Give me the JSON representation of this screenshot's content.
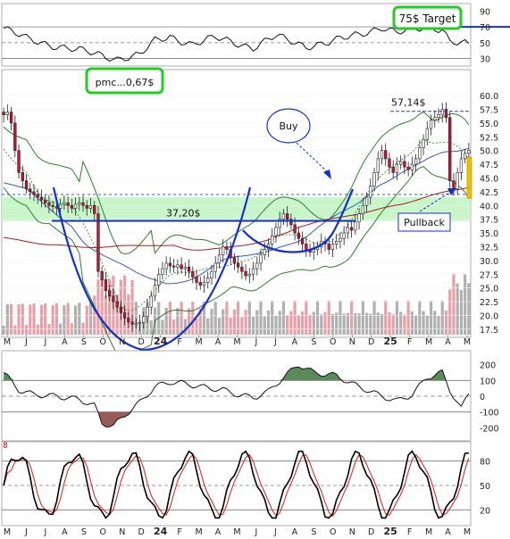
{
  "colors": {
    "up": "#ffffff",
    "down": "#cc1133",
    "candle_stroke": "#222222",
    "green_zone": "#bff5bf",
    "blue_line": "#1530c8",
    "bb_band": "#2f7d2f",
    "ma_long": "#a02020",
    "ma_short": "#3b5bb3",
    "label_box_green": "#22cc22",
    "vol_up": "#b0b0b0",
    "vol_down": "#e8a0a8",
    "rsi_line": "#111111",
    "stoch_k": "#000000",
    "stoch_d": "#e01818"
  },
  "annotations": {
    "target_label": "75$ Target",
    "pmc_label": "pmc...0,67$",
    "buy_label": "Buy",
    "pullback_label": "Pullback",
    "level_3720": "37,20$",
    "level_5714": "57,14$",
    "stoch_top_label": "8"
  },
  "chart_data": [
    {
      "type": "line",
      "panel": "rsi_top",
      "yticks": [
        30,
        50,
        70,
        90
      ],
      "reference_lines": [
        30,
        50,
        70
      ],
      "target_line": 70,
      "ylim": [
        25,
        95
      ]
    },
    {
      "type": "candlestick",
      "panel": "price",
      "xticks": [
        "M",
        "J",
        "J",
        "A",
        "S",
        "O",
        "N",
        "D",
        "24",
        "F",
        "M",
        "A",
        "M",
        "J",
        "J",
        "A",
        "S",
        "O",
        "N",
        "D",
        "25",
        "F",
        "M",
        "A",
        "M"
      ],
      "yticks": [
        17.5,
        20.0,
        22.5,
        25.0,
        27.5,
        30.0,
        32.5,
        35.0,
        37.5,
        40.0,
        42.5,
        45.0,
        47.5,
        50.0,
        52.5,
        55.0,
        57.5,
        60.0
      ],
      "ylim": [
        16.5,
        60.5
      ],
      "levels": {
        "support": 37.2,
        "resistance": 57.14,
        "dashed": 42.0
      },
      "zone": [
        37.2,
        41.5
      ],
      "close": [
        56.5,
        57.0,
        55.0,
        50.0,
        46.0,
        44.5,
        43.0,
        42.5,
        42.0,
        41.5,
        41.0,
        40.5,
        40.0,
        39.8,
        39.5,
        40.2,
        40.5,
        40.0,
        39.5,
        40.2,
        40.5,
        40.0,
        39.5,
        40.0,
        38.5,
        28.0,
        26.5,
        24.5,
        23.5,
        22.5,
        21.5,
        20.5,
        19.5,
        18.8,
        18.4,
        18.5,
        18.7,
        19.8,
        21.5,
        23.5,
        25.5,
        27.5,
        28.5,
        29.5,
        29.0,
        28.8,
        29.2,
        28.5,
        28.8,
        28.0,
        27.0,
        26.0,
        25.5,
        26.0,
        26.8,
        28.0,
        29.5,
        31.0,
        32.5,
        32.0,
        30.5,
        29.5,
        28.8,
        28.0,
        27.2,
        27.5,
        28.5,
        29.5,
        31.0,
        32.0,
        33.0,
        34.5,
        36.0,
        37.5,
        38.5,
        37.5,
        36.5,
        35.0,
        34.0,
        33.0,
        32.0,
        31.5,
        32.0,
        32.5,
        33.5,
        33.0,
        32.0,
        33.0,
        33.5,
        34.0,
        35.0,
        36.0,
        35.5,
        37.0,
        38.5,
        40.0,
        41.5,
        43.5,
        46.0,
        48.5,
        50.0,
        48.5,
        47.0,
        46.0,
        47.5,
        48.0,
        47.0,
        46.5,
        47.5,
        48.5,
        50.5,
        52.0,
        54.0,
        55.5,
        56.0,
        56.5,
        57.5,
        56.0,
        44.5,
        43.0,
        46.0,
        48.5,
        49.5,
        50.0
      ]
    },
    {
      "type": "bar",
      "panel": "volume",
      "yticks": [
        17.5,
        20.0,
        22.5
      ]
    },
    {
      "type": "area",
      "panel": "cci",
      "yticks": [
        -200,
        -100,
        0,
        100,
        200
      ],
      "reference_lines": [
        -100,
        0,
        100
      ],
      "ylim": [
        -260,
        260
      ]
    },
    {
      "type": "line",
      "panel": "stochastic",
      "yticks": [
        20,
        50,
        80
      ],
      "reference_lines": [
        20,
        50,
        80
      ],
      "ylim": [
        5,
        95
      ]
    }
  ]
}
